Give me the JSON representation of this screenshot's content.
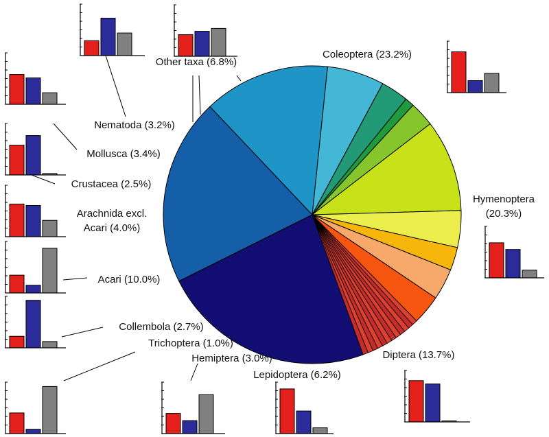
{
  "chart_data": [
    {
      "type": "pie",
      "title": "",
      "slices": [
        {
          "label": "Coleoptera",
          "display": "Coleoptera (23.2%)",
          "value": 23.2,
          "color": "#120d72"
        },
        {
          "label": "Hymenoptera",
          "display": "Hymenoptera (20.3%)",
          "value": 20.3,
          "color": "#155ea8"
        },
        {
          "label": "Diptera",
          "display": "Diptera (13.7%)",
          "value": 13.7,
          "color": "#1e95c6"
        },
        {
          "label": "Lepidoptera",
          "display": "Lepidoptera (6.2%)",
          "value": 6.2,
          "color": "#45b7d6"
        },
        {
          "label": "Hemiptera",
          "display": "Hemiptera (3.0%)",
          "value": 3.0,
          "color": "#239a76"
        },
        {
          "label": "Trichoptera",
          "display": "Trichoptera (1.0%)",
          "value": 1.0,
          "color": "#1f9a3c"
        },
        {
          "label": "Collembola",
          "display": "Collembola (2.7%)",
          "value": 2.7,
          "color": "#86c62c"
        },
        {
          "label": "Acari",
          "display": "Acari (10.0%)",
          "value": 10.0,
          "color": "#c8e21a"
        },
        {
          "label": "Arachnida excl. Acari",
          "display": "Arachnida excl. Acari (4.0%)",
          "value": 4.0,
          "color": "#ecee4e"
        },
        {
          "label": "Crustacea",
          "display": "Crustacea (2.5%)",
          "value": 2.5,
          "color": "#f6b60b"
        },
        {
          "label": "Mollusca",
          "display": "Mollusca (3.4%)",
          "value": 3.4,
          "color": "#f6a96a"
        },
        {
          "label": "Nematoda",
          "display": "Nematoda (3.2%)",
          "value": 3.2,
          "color": "#f6560f"
        },
        {
          "label": "Other taxa",
          "display": "Other taxa (6.8%)",
          "value": 6.8,
          "color": "#d43a2e",
          "subdivisions": 12,
          "sub_colors": [
            "#dc4130",
            "#c42c2c"
          ]
        }
      ]
    },
    {
      "type": "bar",
      "subcharts": [
        {
          "group": "Nematoda",
          "series_colors": [
            "#e3201b",
            "#2b2b9a",
            "#808080"
          ],
          "values": [
            0.31,
            0.78,
            0.47
          ]
        },
        {
          "group": "Other taxa",
          "series_colors": [
            "#e3201b",
            "#2b2b9a",
            "#808080"
          ],
          "values": [
            0.45,
            0.52,
            0.58
          ]
        },
        {
          "group": "Coleoptera",
          "series_colors": [
            "#e3201b",
            "#2b2b9a",
            "#808080"
          ],
          "values": [
            0.85,
            0.25,
            0.4
          ]
        },
        {
          "group": "Mollusca",
          "series_colors": [
            "#e3201b",
            "#2b2b9a",
            "#808080"
          ],
          "values": [
            0.62,
            0.55,
            0.24
          ]
        },
        {
          "group": "Crustacea",
          "series_colors": [
            "#e3201b",
            "#2b2b9a",
            "#808080"
          ],
          "values": [
            0.62,
            0.82,
            0.03
          ]
        },
        {
          "group": "Arachnida excl. Acari",
          "series_colors": [
            "#e3201b",
            "#2b2b9a",
            "#808080"
          ],
          "values": [
            0.68,
            0.65,
            0.34
          ]
        },
        {
          "group": "Acari",
          "series_colors": [
            "#e3201b",
            "#2b2b9a",
            "#808080"
          ],
          "values": [
            0.37,
            0.16,
            0.93
          ]
        },
        {
          "group": "Collembola",
          "series_colors": [
            "#e3201b",
            "#2b2b9a",
            "#808080"
          ],
          "values": [
            0.24,
            0.99,
            0.13
          ]
        },
        {
          "group": "Hymenoptera",
          "series_colors": [
            "#e3201b",
            "#2b2b9a",
            "#808080"
          ],
          "values": [
            0.73,
            0.59,
            0.16
          ]
        },
        {
          "group": "Trichoptera",
          "series_colors": [
            "#e3201b",
            "#2b2b9a",
            "#808080"
          ],
          "values": [
            0.43,
            0.09,
            0.98
          ]
        },
        {
          "group": "Hemiptera",
          "series_colors": [
            "#e3201b",
            "#2b2b9a",
            "#808080"
          ],
          "values": [
            0.42,
            0.27,
            0.81
          ]
        },
        {
          "group": "Lepidoptera",
          "series_colors": [
            "#e3201b",
            "#2b2b9a",
            "#808080"
          ],
          "values": [
            0.93,
            0.47,
            0.12
          ]
        },
        {
          "group": "Diptera",
          "series_colors": [
            "#e3201b",
            "#2b2b9a",
            "#808080"
          ],
          "values": [
            0.86,
            0.79,
            0.0
          ]
        }
      ]
    }
  ]
}
